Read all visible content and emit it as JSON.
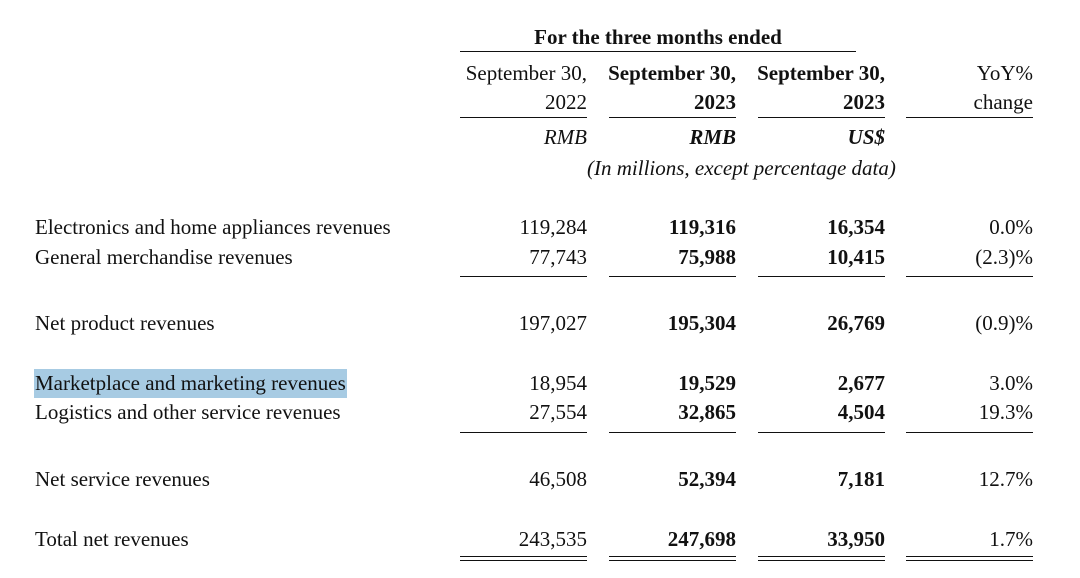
{
  "header": {
    "period_title": "For the three months ended",
    "columns": [
      {
        "line1": "September 30,",
        "line2": "2022",
        "currency": "RMB"
      },
      {
        "line1": "September 30,",
        "line2": "2023",
        "currency": "RMB"
      },
      {
        "line1": "September 30,",
        "line2": "2023",
        "currency": "US$"
      },
      {
        "line1": "YoY%",
        "line2": "change",
        "currency": ""
      }
    ],
    "units_note": "(In millions, except percentage data)"
  },
  "rows": [
    {
      "label": "Electronics and home appliances revenues",
      "values": [
        "119,284",
        "119,316",
        "16,354",
        "0.0%"
      ]
    },
    {
      "label": "General merchandise revenues",
      "values": [
        "77,743",
        "75,988",
        "10,415",
        "(2.3)%"
      ]
    },
    {
      "label": "Net product revenues",
      "values": [
        "197,027",
        "195,304",
        "26,769",
        "(0.9)%"
      ]
    },
    {
      "label": "Marketplace and marketing revenues",
      "values": [
        "18,954",
        "19,529",
        "2,677",
        "3.0%"
      ]
    },
    {
      "label": "Logistics and other service revenues",
      "values": [
        "27,554",
        "32,865",
        "4,504",
        "19.3%"
      ]
    },
    {
      "label": "Net service revenues",
      "values": [
        "46,508",
        "52,394",
        "7,181",
        "12.7%"
      ]
    },
    {
      "label": "Total net revenues",
      "values": [
        "243,535",
        "247,698",
        "33,950",
        "1.7%"
      ]
    }
  ],
  "highlight_color": "#a7cbe3"
}
